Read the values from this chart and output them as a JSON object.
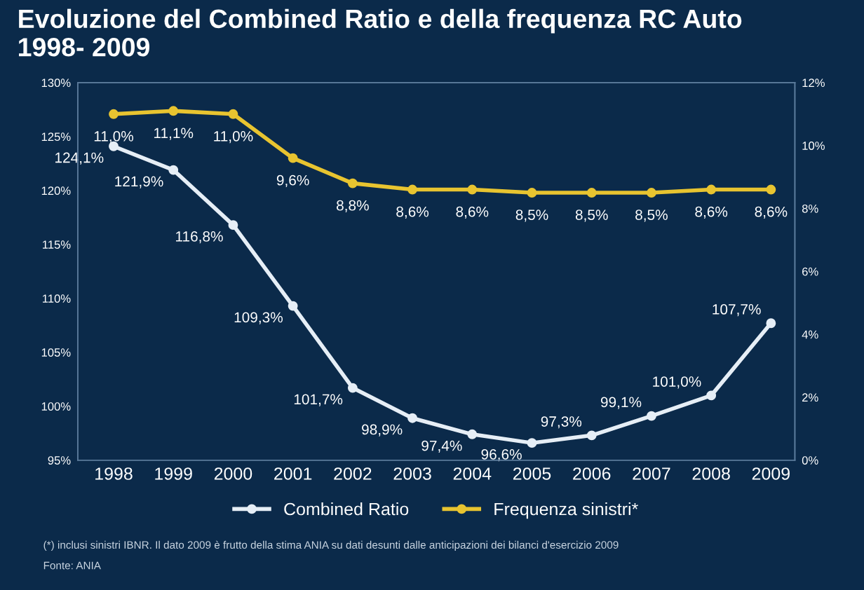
{
  "chart_data": {
    "type": "line",
    "title": "Evoluzione del Combined Ratio e della frequenza RC Auto\n1998- 2009",
    "categories": [
      "1998",
      "1999",
      "2000",
      "2001",
      "2002",
      "2003",
      "2004",
      "2005",
      "2006",
      "2007",
      "2008",
      "2009"
    ],
    "series": [
      {
        "name": "Combined Ratio",
        "color": "#e6eef6",
        "values": [
          124.1,
          121.9,
          116.8,
          109.3,
          101.7,
          98.9,
          97.4,
          96.6,
          97.3,
          99.1,
          101.0,
          107.7
        ],
        "value_labels": [
          "124,1%",
          "121,9%",
          "116,8%",
          "109,3%",
          "101,7%",
          "98,9%",
          "97,4%",
          "96,6%",
          "97,3%",
          "99,1%",
          "101,0%",
          "107,7%"
        ]
      },
      {
        "name": "Frequenza sinistri*",
        "color": "#e8c430",
        "axis": "y2",
        "values": [
          11.0,
          11.1,
          11.0,
          9.6,
          8.8,
          8.6,
          8.6,
          8.5,
          8.5,
          8.5,
          8.6,
          8.6
        ],
        "value_labels": [
          "11,0%",
          "11,1%",
          "11,0%",
          "9,6%",
          "8,8%",
          "8,6%",
          "8,6%",
          "8,5%",
          "8,5%",
          "8,5%",
          "8,6%",
          "8,6%"
        ]
      }
    ],
    "ylim": [
      95,
      130
    ],
    "yticks": [
      {
        "value": 95,
        "label": "95%"
      },
      {
        "value": 100,
        "label": "100%"
      },
      {
        "value": 105,
        "label": "105%"
      },
      {
        "value": 110,
        "label": "110%"
      },
      {
        "value": 115,
        "label": "115%"
      },
      {
        "value": 120,
        "label": "120%"
      },
      {
        "value": 125,
        "label": "125%"
      },
      {
        "value": 130,
        "label": "130%"
      }
    ],
    "y2lim": [
      0,
      12
    ],
    "y2ticks": [
      {
        "value": 0,
        "label": "0%"
      },
      {
        "value": 2,
        "label": "2%"
      },
      {
        "value": 4,
        "label": "4%"
      },
      {
        "value": 6,
        "label": "6%"
      },
      {
        "value": 8,
        "label": "8%"
      },
      {
        "value": 10,
        "label": "10%"
      },
      {
        "value": 12,
        "label": "12%"
      }
    ],
    "marker": "circle",
    "line_style": "solid",
    "legend": "bottom",
    "grid": false,
    "annotations": [
      "(*) inclusi sinistri IBNR. Il dato 2009 è frutto della stima ANIA su dati desunti dalle anticipazioni dei bilanci d'esercizio 2009",
      "Fonte: ANIA"
    ]
  }
}
